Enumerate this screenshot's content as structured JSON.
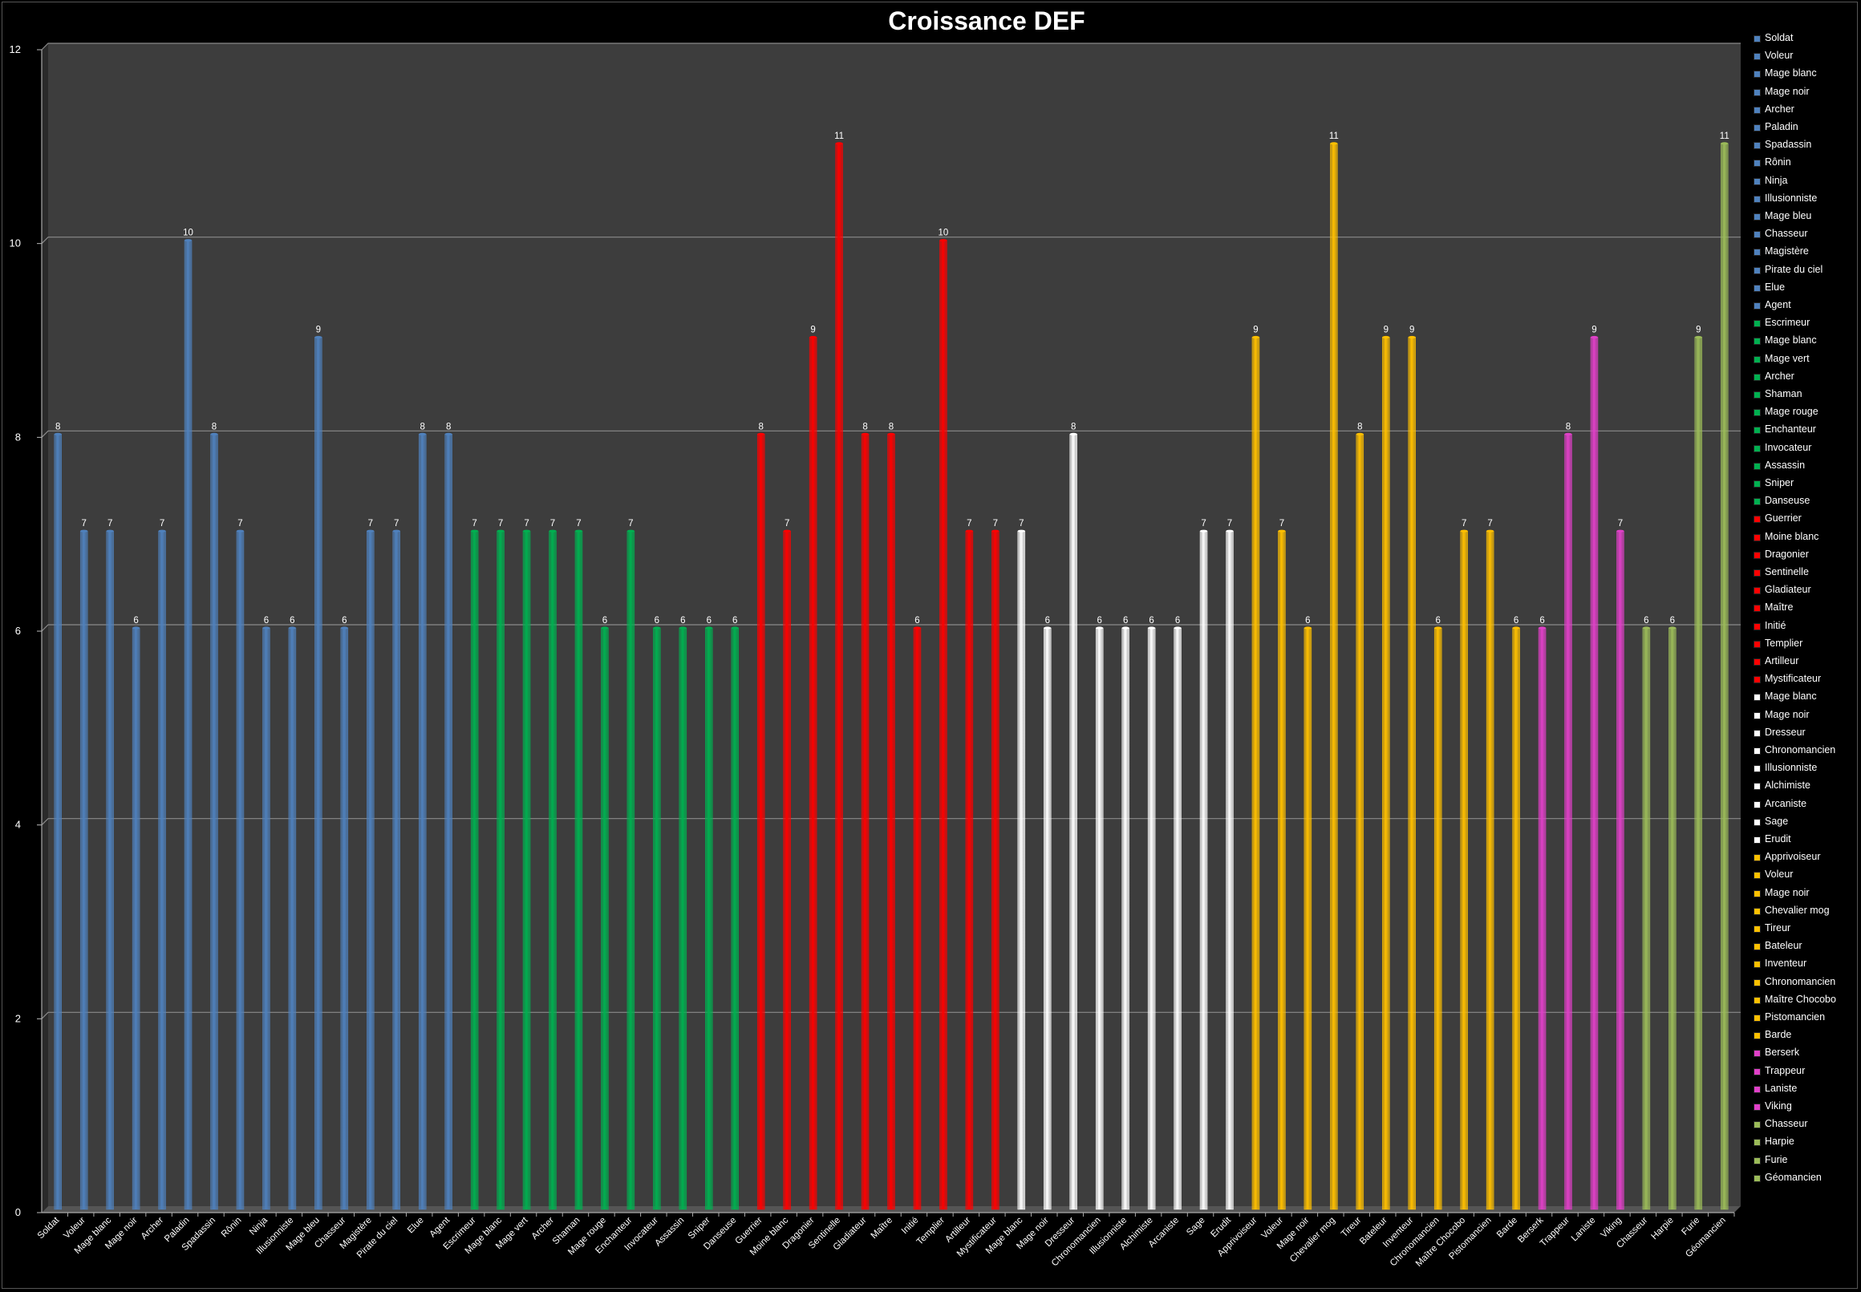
{
  "chart_data": {
    "type": "bar",
    "title": "Croissance DEF",
    "xlabel": "",
    "ylabel": "",
    "ylim": [
      0,
      12
    ],
    "yticks": [
      0,
      2,
      4,
      6,
      8,
      10,
      12
    ],
    "grid": true,
    "legend_position": "right",
    "colors": {
      "blue": "#4f81bd",
      "green": "#00b050",
      "red": "#ff0000",
      "white": "#ffffff",
      "yellow": "#ffc000",
      "pink": "#e040c8",
      "olive": "#9bbb59"
    },
    "categories": [
      "Soldat",
      "Voleur",
      "Mage blanc",
      "Mage noir",
      "Archer",
      "Paladin",
      "Spadassin",
      "Rônin",
      "Ninja",
      "Illusionniste",
      "Mage bleu",
      "Chasseur",
      "Magistère",
      "Pirate du ciel",
      "Elue",
      "Agent",
      "Escrimeur",
      "Mage blanc",
      "Mage vert",
      "Archer",
      "Shaman",
      "Mage rouge",
      "Enchanteur",
      "Invocateur",
      "Assassin",
      "Sniper",
      "Danseuse",
      "Guerrier",
      "Moine blanc",
      "Dragonier",
      "Sentinelle",
      "Gladiateur",
      "Maître",
      "Initié",
      "Templier",
      "Artilleur",
      "Mystificateur",
      "Mage blanc",
      "Mage noir",
      "Dresseur",
      "Chronomancien",
      "Illusionniste",
      "Alchimiste",
      "Arcaniste",
      "Sage",
      "Erudit",
      "Apprivoiseur",
      "Voleur",
      "Mage noir",
      "Chevalier mog",
      "Tireur",
      "Bateleur",
      "Inventeur",
      "Chronomancien",
      "Maître Chocobo",
      "Pistomancien",
      "Barde",
      "Berserk",
      "Trappeur",
      "Laniste",
      "Viking",
      "Chasseur",
      "Harpie",
      "Furie",
      "Géomancien"
    ],
    "values": [
      8,
      7,
      7,
      6,
      7,
      10,
      8,
      7,
      6,
      6,
      9,
      6,
      7,
      7,
      8,
      8,
      7,
      7,
      7,
      7,
      7,
      6,
      7,
      6,
      6,
      6,
      6,
      8,
      7,
      9,
      11,
      8,
      8,
      6,
      10,
      7,
      7,
      7,
      6,
      8,
      6,
      6,
      6,
      6,
      7,
      7,
      9,
      7,
      6,
      11,
      8,
      9,
      9,
      6,
      7,
      7,
      6,
      6,
      8,
      9,
      7,
      6,
      6,
      9,
      11
    ],
    "bar_colors": [
      "blue",
      "blue",
      "blue",
      "blue",
      "blue",
      "blue",
      "blue",
      "blue",
      "blue",
      "blue",
      "blue",
      "blue",
      "blue",
      "blue",
      "blue",
      "blue",
      "green",
      "green",
      "green",
      "green",
      "green",
      "green",
      "green",
      "green",
      "green",
      "green",
      "green",
      "red",
      "red",
      "red",
      "red",
      "red",
      "red",
      "red",
      "red",
      "red",
      "red",
      "white",
      "white",
      "white",
      "white",
      "white",
      "white",
      "white",
      "white",
      "white",
      "yellow",
      "yellow",
      "yellow",
      "yellow",
      "yellow",
      "yellow",
      "yellow",
      "yellow",
      "yellow",
      "yellow",
      "yellow",
      "pink",
      "pink",
      "pink",
      "pink",
      "olive",
      "olive",
      "olive",
      "olive"
    ],
    "legend": [
      "Soldat",
      "Voleur",
      "Mage blanc",
      "Mage noir",
      "Archer",
      "Paladin",
      "Spadassin",
      "Rônin",
      "Ninja",
      "Illusionniste",
      "Mage bleu",
      "Chasseur",
      "Magistère",
      "Pirate du ciel",
      "Elue",
      "Agent",
      "Escrimeur",
      "Mage blanc",
      "Mage vert",
      "Archer",
      "Shaman",
      "Mage rouge",
      "Enchanteur",
      "Invocateur",
      "Assassin",
      "Sniper",
      "Danseuse",
      "Guerrier",
      "Moine blanc",
      "Dragonier",
      "Sentinelle",
      "Gladiateur",
      "Maître",
      "Initié",
      "Templier",
      "Artilleur",
      "Mystificateur",
      "Mage blanc",
      "Mage noir",
      "Dresseur",
      "Chronomancien",
      "Illusionniste",
      "Alchimiste",
      "Arcaniste",
      "Sage",
      "Erudit",
      "Apprivoiseur",
      "Voleur",
      "Mage noir",
      "Chevalier mog",
      "Tireur",
      "Bateleur",
      "Inventeur",
      "Chronomancien",
      "Maître Chocobo",
      "Pistomancien",
      "Barde",
      "Berserk",
      "Trappeur",
      "Laniste",
      "Viking",
      "Chasseur",
      "Harpie",
      "Furie",
      "Géomancien"
    ]
  }
}
